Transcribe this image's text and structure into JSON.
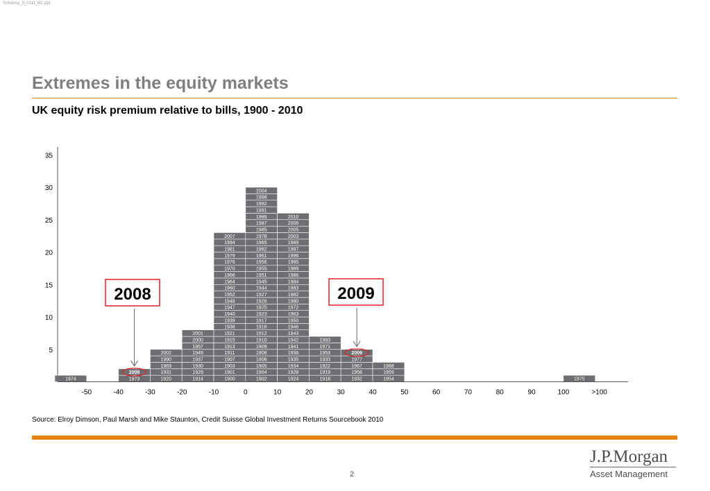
{
  "file_label": "Solvency_II_0111_BC.ppt",
  "title": "Extremes in the equity markets",
  "subtitle": "UK equity risk premium relative to bills, 1900 - 2010",
  "source": "Source: Elroy Dimson, Paul Marsh and Mike Staunton, Credit Suisse Global Investment Returns Sourcebook 2010",
  "page_number": "2",
  "logo": {
    "main": "J.P.Morgan",
    "sub": "Asset Management"
  },
  "colors": {
    "accent": "#e8820c",
    "bar": "#6d6e71",
    "highlight": "#e31e24"
  },
  "chart_data": {
    "type": "bar",
    "title": "UK equity risk premium relative to bills, 1900 - 2010",
    "xlabel": "",
    "ylabel": "",
    "y_ticks": [
      "35",
      "30",
      "25",
      "20",
      "15",
      "10",
      "5"
    ],
    "x_ticks": [
      "-50",
      "-40",
      "-30",
      "-20",
      "-10",
      "0",
      "10",
      "20",
      "30",
      "40",
      "50",
      "60",
      "70",
      "80",
      "90",
      "100",
      ">100"
    ],
    "ylim": [
      0,
      35
    ],
    "bins": [
      {
        "range": "<-50",
        "years": [
          "1974"
        ]
      },
      {
        "range": "-50 to -40",
        "years": []
      },
      {
        "range": "-40 to -30",
        "years": [
          "1973",
          "2008"
        ]
      },
      {
        "range": "-30 to -20",
        "years": [
          "1920",
          "1931",
          "1969",
          "1990",
          "2002"
        ]
      },
      {
        "range": "-20 to -10",
        "years": [
          "1914",
          "1929",
          "1930",
          "1937",
          "1949",
          "1957",
          "2000",
          "2001"
        ]
      },
      {
        "range": "-10 to 0",
        "years": [
          "1900",
          "1901",
          "1903",
          "1907",
          "1911",
          "1913",
          "1915",
          "1921",
          "1938",
          "1939",
          "1940",
          "1947",
          "1948",
          "1952",
          "1960",
          "1964",
          "1966",
          "1970",
          "1976",
          "1979",
          "1981",
          "1994",
          "2007"
        ]
      },
      {
        "range": "0 to 10",
        "years": [
          "1902",
          "1904",
          "1905",
          "1906",
          "1908",
          "1909",
          "1910",
          "1912",
          "1916",
          "1917",
          "1923",
          "1925",
          "1926",
          "1927",
          "1944",
          "1945",
          "1951",
          "1955",
          "1956",
          "1961",
          "1962",
          "1965",
          "1978",
          "1985",
          "1987",
          "1988",
          "1991",
          "1992",
          "1998",
          "2004"
        ]
      },
      {
        "range": "10 to 20",
        "years": [
          "1924",
          "1928",
          "1934",
          "1935",
          "1936",
          "1941",
          "1942",
          "1943",
          "1946",
          "1950",
          "1963",
          "1972",
          "1980",
          "1982",
          "1983",
          "1984",
          "1986",
          "1989",
          "1995",
          "1996",
          "1997",
          "1999",
          "2003",
          "2005",
          "2006",
          "2010"
        ]
      },
      {
        "range": "20 to 30",
        "years": [
          "1918",
          "1919",
          "1922",
          "1933",
          "1953",
          "1971",
          "1993"
        ]
      },
      {
        "range": "30 to 40",
        "years": [
          "1932",
          "1958",
          "1967",
          "1977",
          "2009"
        ]
      },
      {
        "range": "40 to 50",
        "years": [
          "1954",
          "1959",
          "1968"
        ]
      },
      {
        "range": "50 to 60",
        "years": []
      },
      {
        "range": "60 to 70",
        "years": []
      },
      {
        "range": "70 to 80",
        "years": []
      },
      {
        "range": "80 to 90",
        "years": []
      },
      {
        "range": "90 to 100",
        "years": []
      },
      {
        "range": ">100",
        "years": [
          "1975"
        ]
      }
    ],
    "highlighted_years": [
      "2008",
      "2009"
    ],
    "annotations": [
      {
        "text": "2008",
        "points_to": "2008"
      },
      {
        "text": "2009",
        "points_to": "2009"
      }
    ]
  }
}
